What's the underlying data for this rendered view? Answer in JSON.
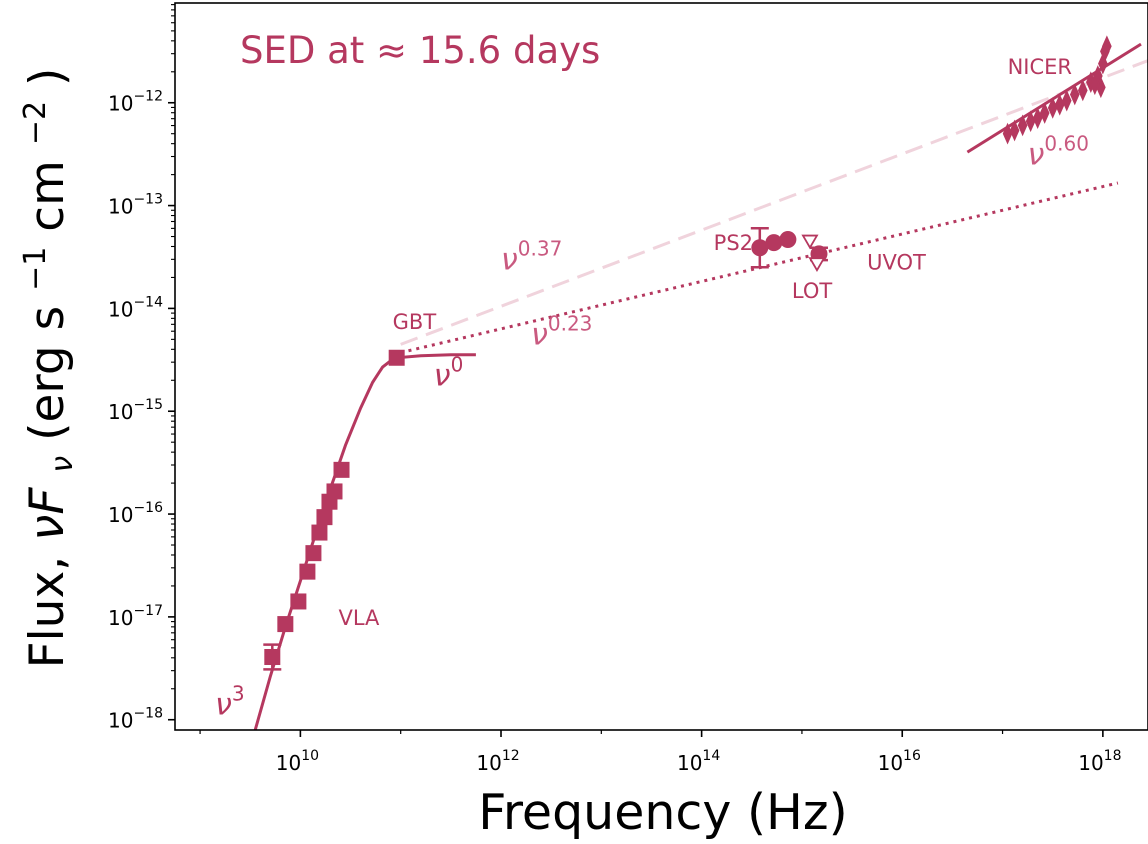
{
  "chart_data": {
    "type": "scatter",
    "title": "SED at ≈ 15.6 days",
    "xlabel": "Frequency (Hz)",
    "ylabel_text": "Flux, ",
    "ylabel_quantity": "νF",
    "ylabel_quantity_sub": "ν",
    "ylabel_units": " (erg s",
    "ylabel_exp1": "−1",
    "ylabel_units2": " cm",
    "ylabel_exp2": "−2",
    "ylabel_close": ")",
    "x_scale": "log",
    "y_scale": "log",
    "xlim_log10": [
      8.75,
      18.45
    ],
    "ylim_log10": [
      -18.1,
      -11.03
    ],
    "x_ticks": [
      {
        "exp": 10,
        "base": "10",
        "label": "10"
      },
      {
        "exp": 12,
        "base": "10",
        "label": "12"
      },
      {
        "exp": 14,
        "base": "10",
        "label": "14"
      },
      {
        "exp": 16,
        "base": "10",
        "label": "16"
      },
      {
        "exp": 18,
        "base": "10",
        "label": "18"
      }
    ],
    "y_ticks": [
      {
        "exp": -18,
        "base": "10",
        "label": "−18"
      },
      {
        "exp": -17,
        "base": "10",
        "label": "−17"
      },
      {
        "exp": -16,
        "base": "10",
        "label": "−16"
      },
      {
        "exp": -15,
        "base": "10",
        "label": "−15"
      },
      {
        "exp": -14,
        "base": "10",
        "label": "−14"
      },
      {
        "exp": -13,
        "base": "10",
        "label": "−13"
      },
      {
        "exp": -12,
        "base": "10",
        "label": "−12"
      }
    ],
    "colors": {
      "main": "#b5385f",
      "dotted": "#b5385f",
      "dashed": "#f0d3dc",
      "text": "#b5385f",
      "text_light": "#c95a80"
    },
    "series": [
      {
        "name": "VLA",
        "marker": "square",
        "points": [
          {
            "x": 9.72,
            "y": -17.39,
            "yerr": 0.12
          },
          {
            "x": 9.85,
            "y": -17.07
          },
          {
            "x": 9.98,
            "y": -16.85
          },
          {
            "x": 10.07,
            "y": -16.56
          },
          {
            "x": 10.13,
            "y": -16.38
          },
          {
            "x": 10.19,
            "y": -16.18
          },
          {
            "x": 10.24,
            "y": -16.03
          },
          {
            "x": 10.29,
            "y": -15.88
          },
          {
            "x": 10.34,
            "y": -15.78
          },
          {
            "x": 10.41,
            "y": -15.57
          }
        ]
      },
      {
        "name": "GBT",
        "marker": "square",
        "points": [
          {
            "x": 10.96,
            "y": -14.48
          }
        ]
      },
      {
        "name": "PS2",
        "marker": "circle",
        "points": [
          {
            "x": 14.58,
            "y": -13.41,
            "yerr": 0.19
          },
          {
            "x": 14.72,
            "y": -13.36
          },
          {
            "x": 14.86,
            "y": -13.33
          }
        ]
      },
      {
        "name": "LOT",
        "marker": "circle",
        "points": [
          {
            "x": 15.17,
            "y": -13.47,
            "yerr": 0.06
          }
        ]
      },
      {
        "name": "UVOT",
        "marker": "triangle-down-open",
        "points": [
          {
            "x": 15.08,
            "y": -13.35
          },
          {
            "x": 15.15,
            "y": -13.57
          }
        ]
      },
      {
        "name": "NICER",
        "marker": "thin-errorbars",
        "points": [
          {
            "x": 17.05,
            "y": -12.3
          },
          {
            "x": 17.12,
            "y": -12.27
          },
          {
            "x": 17.2,
            "y": -12.22
          },
          {
            "x": 17.28,
            "y": -12.18
          },
          {
            "x": 17.35,
            "y": -12.15
          },
          {
            "x": 17.42,
            "y": -12.1
          },
          {
            "x": 17.5,
            "y": -12.05
          },
          {
            "x": 17.57,
            "y": -12.02
          },
          {
            "x": 17.64,
            "y": -11.98
          },
          {
            "x": 17.72,
            "y": -11.92
          },
          {
            "x": 17.8,
            "y": -11.88
          },
          {
            "x": 17.88,
            "y": -11.8
          },
          {
            "x": 17.95,
            "y": -11.74
          },
          {
            "x": 18.0,
            "y": -11.62
          },
          {
            "x": 18.02,
            "y": -11.5
          },
          {
            "x": 18.04,
            "y": -11.45
          },
          {
            "x": 17.98,
            "y": -11.85
          },
          {
            "x": 17.92,
            "y": -11.82
          }
        ]
      }
    ],
    "lines": [
      {
        "style": "solid",
        "points": [
          [
            9.55,
            -18.1
          ],
          [
            9.7,
            -17.58
          ],
          [
            9.85,
            -17.1
          ],
          [
            10.0,
            -16.65
          ],
          [
            10.15,
            -16.2
          ],
          [
            10.3,
            -15.75
          ],
          [
            10.45,
            -15.33
          ],
          [
            10.6,
            -14.97
          ],
          [
            10.72,
            -14.72
          ],
          [
            10.82,
            -14.57
          ],
          [
            10.9,
            -14.51
          ],
          [
            10.96,
            -14.48
          ],
          [
            11.2,
            -14.46
          ],
          [
            11.5,
            -14.45
          ],
          [
            11.75,
            -14.45
          ]
        ]
      },
      {
        "style": "dashed",
        "points": [
          [
            11.0,
            -14.35
          ],
          [
            18.45,
            -11.59
          ]
        ]
      },
      {
        "style": "dotted",
        "points": [
          [
            11.0,
            -14.43
          ],
          [
            18.15,
            -12.78
          ]
        ]
      },
      {
        "style": "solid",
        "points": [
          [
            16.65,
            -12.48
          ],
          [
            18.38,
            -11.43
          ]
        ]
      }
    ],
    "annotations": [
      {
        "text": "NICER",
        "x": 17.05,
        "y": -11.72
      },
      {
        "text": "PS2",
        "x": 14.12,
        "y": -13.43
      },
      {
        "text": "LOT",
        "x": 14.9,
        "y": -13.9
      },
      {
        "text": "UVOT",
        "x": 15.65,
        "y": -13.62
      },
      {
        "text": "GBT",
        "x": 10.92,
        "y": -14.2
      },
      {
        "text": "VLA",
        "x": 10.38,
        "y": -17.08
      }
    ],
    "power_labels": [
      {
        "base": "ν",
        "exp": "0.60",
        "x": 17.25,
        "y": -12.6
      },
      {
        "base": "ν",
        "exp": "0.37",
        "x": 12.0,
        "y": -13.62
      },
      {
        "base": "ν",
        "exp": "0.23",
        "x": 12.3,
        "y": -14.35
      },
      {
        "base": "ν",
        "exp": "0",
        "x": 11.33,
        "y": -14.75
      },
      {
        "base": "ν",
        "exp": "3",
        "x": 9.15,
        "y": -17.95
      }
    ]
  }
}
